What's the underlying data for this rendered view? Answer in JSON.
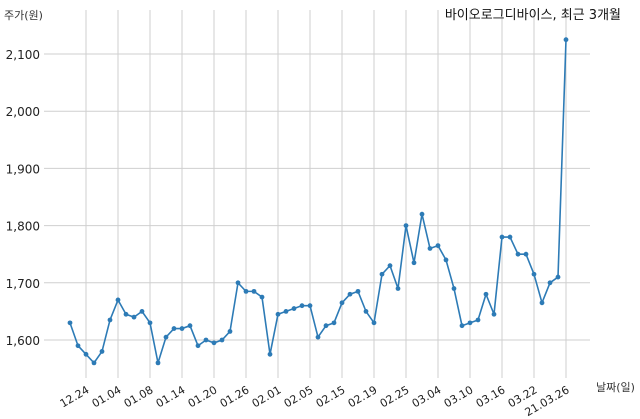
{
  "chart_data": {
    "type": "line",
    "title": "바이오로그디바이스, 최근 3개월",
    "xlabel": "날짜(일)",
    "ylabel": "주가(원)",
    "ylim": [
      1540,
      2160
    ],
    "yticks": [
      "1,600",
      "1,700",
      "1,800",
      "1,900",
      "2,000",
      "2,100"
    ],
    "ytick_values": [
      1600,
      1700,
      1800,
      1900,
      2000,
      2100
    ],
    "xticks": [
      "12.24",
      "01.04",
      "01.08",
      "01.14",
      "01.20",
      "01.26",
      "02.01",
      "02.05",
      "02.15",
      "02.19",
      "02.25",
      "03.04",
      "03.10",
      "03.16",
      "03.22",
      "21.03.26"
    ],
    "xtick_index": [
      3,
      7,
      11,
      15,
      19,
      23,
      27,
      31,
      35,
      39,
      43,
      47,
      51,
      55,
      59,
      63
    ],
    "grid": true,
    "line_color": "#2d7bb6",
    "series": [
      {
        "values": [
          1630,
          1590,
          1575,
          1560,
          1580,
          1635,
          1670,
          1645,
          1640,
          1650,
          1630,
          1560,
          1605,
          1620,
          1620,
          1625,
          1590,
          1600,
          1595,
          1600,
          1615,
          1700,
          1685,
          1685,
          1675,
          1575,
          1645,
          1650,
          1655,
          1660,
          1660,
          1605,
          1625,
          1630,
          1665,
          1680,
          1685,
          1650,
          1630,
          1715,
          1730,
          1690,
          1800,
          1735,
          1820,
          1760,
          1765,
          1740,
          1690,
          1625,
          1630,
          1635,
          1680,
          1645,
          1780,
          1780,
          1750,
          1750,
          1715,
          1665,
          1700,
          1710,
          2125
        ]
      }
    ]
  }
}
